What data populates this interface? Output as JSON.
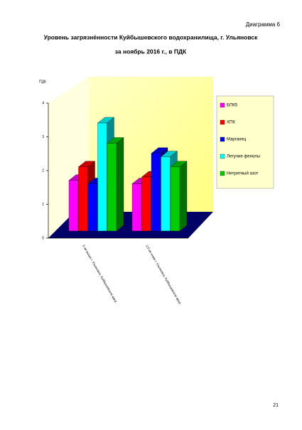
{
  "header": {
    "label": "Диаграмма 6"
  },
  "chart_data": {
    "type": "bar3d",
    "title": "Уровень загрязнённости Куйбышевского водохранилища, г. Ульяновск",
    "subtitle": "за ноябрь 2016 г., в ПДК",
    "y_label": "ПДК",
    "categories": [
      "5 км выше г. Ульяновск, Куйбышевское вдхр.",
      "2,5 км ниже г. Ульяновск, Куйбышевское вдхр."
    ],
    "series": [
      {
        "name": "БПК5",
        "color": "#ff00ff",
        "values": [
          1.5,
          1.4
        ]
      },
      {
        "name": "ХПК",
        "color": "#ff0000",
        "values": [
          1.9,
          1.6
        ]
      },
      {
        "name": "Марганец",
        "color": "#0000ff",
        "values": [
          1.4,
          2.3
        ]
      },
      {
        "name": "Летучие фенолы",
        "color": "#00ffff",
        "values": [
          3.2,
          2.2
        ]
      },
      {
        "name": "Нитритный азот",
        "color": "#00cc00",
        "values": [
          2.6,
          1.9
        ]
      }
    ],
    "ylim": [
      0,
      4
    ],
    "yticks": [
      0,
      1,
      2,
      3,
      4
    ]
  },
  "page_number": "21"
}
